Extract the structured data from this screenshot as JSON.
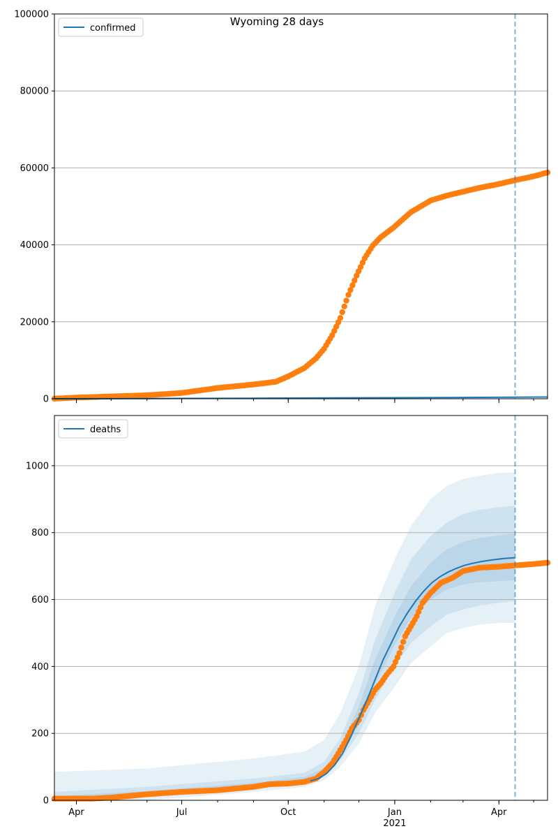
{
  "title": "Wyoming 28 days",
  "x_ticks": [
    {
      "date": "2020-04-01",
      "label": "Apr",
      "sublabel": ""
    },
    {
      "date": "2020-07-01",
      "label": "Jul",
      "sublabel": ""
    },
    {
      "date": "2020-10-01",
      "label": "Oct",
      "sublabel": ""
    },
    {
      "date": "2021-01-01",
      "label": "Jan",
      "sublabel": "2021"
    },
    {
      "date": "2021-04-01",
      "label": "Apr",
      "sublabel": ""
    }
  ],
  "colors": {
    "model": "#1f77b4",
    "observed": "#ff7f0e",
    "band": "#1f77b4",
    "grid": "#b0b0b0",
    "cutoff": "#1f77b4"
  },
  "chart_data": [
    {
      "type": "line",
      "panel": "top",
      "legend": "confirmed",
      "legend_position": "upper-left",
      "xlim": [
        "2020-03-13",
        "2021-05-13"
      ],
      "ylim": [
        0,
        100000
      ],
      "y_ticks": [
        0,
        20000,
        40000,
        60000,
        80000,
        100000
      ],
      "grid": "horizontal",
      "forecast_start": "2021-04-15",
      "model_line": {
        "name": "confirmed",
        "x": [
          "2020-03-13",
          "2020-06-01",
          "2020-09-01",
          "2020-12-01",
          "2021-03-01",
          "2021-04-15",
          "2021-05-13"
        ],
        "y": [
          0,
          50,
          150,
          250,
          350,
          400,
          450
        ]
      },
      "observed_points": {
        "x": [
          "2020-03-13",
          "2020-04-01",
          "2020-05-01",
          "2020-06-01",
          "2020-07-01",
          "2020-08-01",
          "2020-09-01",
          "2020-09-20",
          "2020-10-01",
          "2020-10-15",
          "2020-10-25",
          "2020-11-01",
          "2020-11-08",
          "2020-11-15",
          "2020-11-22",
          "2020-11-29",
          "2020-12-06",
          "2020-12-13",
          "2020-12-20",
          "2020-12-31",
          "2021-01-15",
          "2021-02-01",
          "2021-02-15",
          "2021-03-01",
          "2021-03-15",
          "2021-04-01",
          "2021-04-15",
          "2021-05-01",
          "2021-05-13"
        ],
        "y": [
          20,
          300,
          600,
          900,
          1500,
          2800,
          3700,
          4400,
          5800,
          8000,
          10500,
          13000,
          16500,
          21000,
          27000,
          32000,
          36500,
          39800,
          42000,
          44500,
          48500,
          51500,
          52800,
          53800,
          54800,
          55800,
          56800,
          57800,
          58800
        ]
      }
    },
    {
      "type": "line",
      "panel": "bottom",
      "legend": "deaths",
      "legend_position": "upper-left",
      "xlim": [
        "2020-03-13",
        "2021-05-13"
      ],
      "ylim": [
        0,
        1150
      ],
      "y_ticks": [
        0,
        200,
        400,
        600,
        800,
        1000
      ],
      "grid": "horizontal",
      "forecast_start": "2021-04-15",
      "model_line": {
        "name": "deaths",
        "x": [
          "2020-10-20",
          "2020-10-27",
          "2020-11-03",
          "2020-11-10",
          "2020-11-17",
          "2020-11-24",
          "2020-12-01",
          "2020-12-08",
          "2020-12-15",
          "2020-12-22",
          "2020-12-29",
          "2021-01-05",
          "2021-01-12",
          "2021-01-19",
          "2021-01-26",
          "2021-02-02",
          "2021-02-09",
          "2021-02-16",
          "2021-02-23",
          "2021-03-02",
          "2021-03-09",
          "2021-03-16",
          "2021-03-23",
          "2021-03-30",
          "2021-04-06",
          "2021-04-15"
        ],
        "y": [
          58,
          65,
          80,
          105,
          140,
          190,
          245,
          300,
          360,
          420,
          470,
          520,
          560,
          595,
          625,
          650,
          668,
          682,
          693,
          702,
          708,
          713,
          717,
          720,
          723,
          725
        ]
      },
      "bands": [
        {
          "name": "outer",
          "x": [
            "2020-03-13",
            "2020-06-01",
            "2020-09-01",
            "2020-10-15",
            "2020-11-01",
            "2020-11-15",
            "2020-12-01",
            "2020-12-15",
            "2021-01-01",
            "2021-01-15",
            "2021-02-01",
            "2021-02-15",
            "2021-03-01",
            "2021-03-15",
            "2021-04-01",
            "2021-04-15"
          ],
          "upper": [
            85,
            95,
            125,
            145,
            180,
            260,
            400,
            580,
            720,
            820,
            900,
            940,
            960,
            970,
            978,
            980
          ],
          "lower": [
            0,
            0,
            25,
            40,
            60,
            100,
            170,
            260,
            340,
            410,
            460,
            500,
            515,
            525,
            530,
            530
          ]
        },
        {
          "name": "middle",
          "x": [
            "2020-03-13",
            "2020-06-01",
            "2020-09-01",
            "2020-10-15",
            "2020-11-01",
            "2020-11-15",
            "2020-12-01",
            "2020-12-15",
            "2021-01-01",
            "2021-01-15",
            "2021-02-01",
            "2021-02-15",
            "2021-03-01",
            "2021-03-15",
            "2021-04-01",
            "2021-04-15"
          ],
          "upper": [
            25,
            40,
            65,
            82,
            115,
            185,
            320,
            480,
            620,
            720,
            790,
            830,
            855,
            868,
            876,
            880
          ],
          "lower": [
            0,
            10,
            35,
            50,
            70,
            120,
            200,
            300,
            400,
            470,
            520,
            555,
            570,
            582,
            590,
            595
          ]
        },
        {
          "name": "inner",
          "x": [
            "2020-03-13",
            "2020-06-01",
            "2020-09-01",
            "2020-10-15",
            "2020-11-01",
            "2020-11-15",
            "2020-12-01",
            "2020-12-15",
            "2021-01-01",
            "2021-01-15",
            "2021-02-01",
            "2021-02-15",
            "2021-03-01",
            "2021-03-15",
            "2021-04-01",
            "2021-04-15"
          ],
          "upper": [
            12,
            28,
            52,
            70,
            95,
            160,
            280,
            420,
            550,
            640,
            710,
            750,
            772,
            784,
            792,
            798
          ],
          "lower": [
            0,
            16,
            42,
            58,
            80,
            130,
            225,
            345,
            465,
            545,
            600,
            630,
            645,
            652,
            655,
            658
          ]
        }
      ],
      "observed_points": {
        "x": [
          "2020-03-13",
          "2020-04-15",
          "2020-05-01",
          "2020-06-01",
          "2020-07-01",
          "2020-08-01",
          "2020-09-01",
          "2020-09-15",
          "2020-10-01",
          "2020-10-15",
          "2020-10-25",
          "2020-11-01",
          "2020-11-08",
          "2020-11-15",
          "2020-11-20",
          "2020-11-25",
          "2020-12-01",
          "2020-12-05",
          "2020-12-10",
          "2020-12-15",
          "2020-12-20",
          "2020-12-25",
          "2020-12-31",
          "2021-01-05",
          "2021-01-10",
          "2021-01-15",
          "2021-01-20",
          "2021-01-25",
          "2021-02-01",
          "2021-02-10",
          "2021-02-20",
          "2021-03-01",
          "2021-03-15",
          "2021-04-01",
          "2021-04-15",
          "2021-05-01",
          "2021-05-13"
        ],
        "y": [
          5,
          5,
          8,
          18,
          25,
          30,
          40,
          48,
          50,
          55,
          65,
          85,
          110,
          150,
          180,
          215,
          240,
          270,
          300,
          330,
          350,
          375,
          400,
          440,
          490,
          520,
          550,
          590,
          620,
          650,
          665,
          685,
          695,
          698,
          702,
          706,
          710
        ]
      }
    }
  ]
}
